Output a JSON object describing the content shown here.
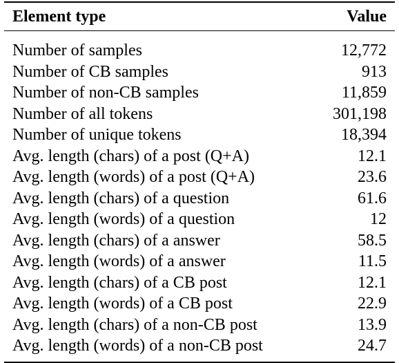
{
  "table": {
    "header": {
      "element_type": "Element type",
      "value": "Value"
    },
    "rows": [
      {
        "label": "Number of samples",
        "value": "12,772"
      },
      {
        "label": "Number of CB samples",
        "value": "913"
      },
      {
        "label": "Number of non-CB samples",
        "value": "11,859"
      },
      {
        "label": "Number of all tokens",
        "value": "301,198"
      },
      {
        "label": "Number of unique tokens",
        "value": "18,394"
      },
      {
        "label": "Avg. length (chars) of a post (Q+A)",
        "value": "12.1"
      },
      {
        "label": "Avg. length (words) of a post (Q+A)",
        "value": "23.6"
      },
      {
        "label": "Avg. length (chars) of a question",
        "value": "61.6"
      },
      {
        "label": "Avg. length (words) of a question",
        "value": "12"
      },
      {
        "label": "Avg. length (chars) of a answer",
        "value": "58.5"
      },
      {
        "label": "Avg. length (words) of a answer",
        "value": "11.5"
      },
      {
        "label": "Avg. length (chars) of a CB post",
        "value": "12.1"
      },
      {
        "label": "Avg. length (words) of a CB post",
        "value": "22.9"
      },
      {
        "label": "Avg. length (chars) of a non-CB post",
        "value": "13.9"
      },
      {
        "label": "Avg. length (words) of a non-CB post",
        "value": "24.7"
      }
    ]
  }
}
